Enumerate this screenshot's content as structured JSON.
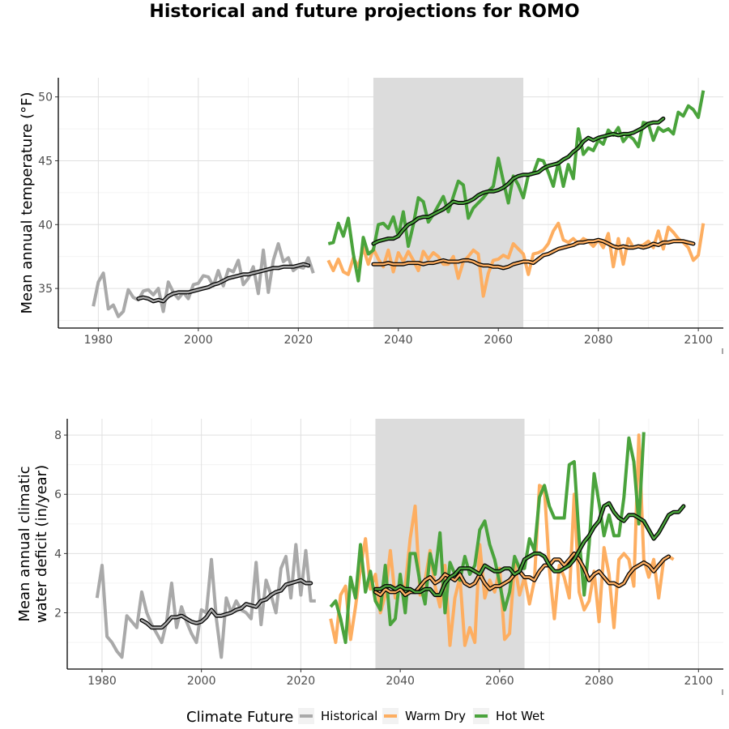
{
  "title": "Historical and future projections for ROMO",
  "colors": {
    "historical": "#a9a9a9",
    "warm_dry": "#fdae61",
    "hot_wet": "#4aa33c",
    "shade": "#dcdcdc"
  },
  "legend": {
    "title": "Climate Future",
    "items": [
      "Historical",
      "Warm Dry",
      "Hot Wet"
    ]
  },
  "chart_data": [
    {
      "type": "line",
      "ylabel": "Mean annual temperature (°F)",
      "xlim": [
        1972,
        2105
      ],
      "ylim": [
        31.9,
        51.5
      ],
      "xticks": [
        1980,
        2000,
        2020,
        2040,
        2060,
        2080,
        2100
      ],
      "yticks": [
        35,
        40,
        45,
        50
      ],
      "shaded_period": [
        2035,
        2065
      ],
      "series": [
        {
          "name": "Historical",
          "color_key": "historical",
          "smooth": false,
          "start": 1979,
          "values": [
            33.6,
            35.5,
            36.2,
            33.4,
            33.7,
            32.8,
            33.2,
            34.9,
            34.3,
            34.1,
            34.8,
            34.9,
            34.5,
            35.0,
            33.2,
            35.5,
            34.7,
            34.2,
            34.7,
            34.2,
            35.3,
            35.4,
            36.0,
            35.9,
            35.2,
            36.4,
            35.2,
            36.5,
            36.3,
            37.2,
            35.3,
            35.8,
            36.7,
            34.6,
            38.0,
            34.7,
            37.2,
            38.5,
            37.1,
            37.4,
            36.4,
            36.7,
            36.6,
            37.4,
            36.2
          ]
        },
        {
          "name": "Historical (moving average)",
          "color_key": "historical",
          "smooth": true,
          "start": 1988,
          "values": [
            34.2,
            34.3,
            34.2,
            34.0,
            34.1,
            34.0,
            34.4,
            34.6,
            34.7,
            34.7,
            34.7,
            34.8,
            34.9,
            35.0,
            35.1,
            35.3,
            35.4,
            35.6,
            35.8,
            35.9,
            36.0,
            36.1,
            36.1,
            36.2,
            36.3,
            36.4,
            36.5,
            36.6,
            36.6,
            36.7,
            36.7,
            36.7,
            36.8,
            36.9,
            36.8
          ]
        },
        {
          "name": "Warm Dry",
          "color_key": "warm_dry",
          "smooth": false,
          "start": 2026,
          "values": [
            37.2,
            36.4,
            37.3,
            36.3,
            36.1,
            37.4,
            36.7,
            38.2,
            36.9,
            38.1,
            37.3,
            36.7,
            38.0,
            36.3,
            37.8,
            37.1,
            37.9,
            37.2,
            36.4,
            37.9,
            37.3,
            37.8,
            37.5,
            36.9,
            36.9,
            37.5,
            35.8,
            37.1,
            37.5,
            38.0,
            37.7,
            34.4,
            36.2,
            37.2,
            37.3,
            37.6,
            37.4,
            38.5,
            38.1,
            37.7,
            36.1,
            37.7,
            37.8,
            38.0,
            38.5,
            39.5,
            40.1,
            38.8,
            38.6,
            38.9,
            38.5,
            38.9,
            38.7,
            38.3,
            38.8,
            38.2,
            39.3,
            36.7,
            38.9,
            36.9,
            38.9,
            38.2,
            38.3,
            38.4,
            38.7,
            38.2,
            39.5,
            38.1,
            39.8,
            39.4,
            38.9,
            38.6,
            38.2,
            37.2,
            37.6,
            40.1
          ]
        },
        {
          "name": "Hot Wet",
          "color_key": "hot_wet",
          "smooth": false,
          "start": 2026,
          "values": [
            38.5,
            38.6,
            40.1,
            39.1,
            40.5,
            37.7,
            35.6,
            39.0,
            37.7,
            38.0,
            40.0,
            40.1,
            39.7,
            40.6,
            39.1,
            41.0,
            38.3,
            40.0,
            42.1,
            41.8,
            40.2,
            40.8,
            41.5,
            42.2,
            41.0,
            42.2,
            43.4,
            43.1,
            40.5,
            41.3,
            41.7,
            42.1,
            42.6,
            43.0,
            45.2,
            43.4,
            41.7,
            43.8,
            43.1,
            42.1,
            43.9,
            44.0,
            45.1,
            45.0,
            44.1,
            43.0,
            44.9,
            43.0,
            44.7,
            43.6,
            47.5,
            45.5,
            46.0,
            45.8,
            46.6,
            46.3,
            47.4,
            47.0,
            47.6,
            46.5,
            47.0,
            46.7,
            46.1,
            48.0,
            47.9,
            46.6,
            47.6,
            47.3,
            47.5,
            47.1,
            48.8,
            48.5,
            49.3,
            49.0,
            48.4,
            50.5
          ]
        },
        {
          "name": "Warm Dry (moving average)",
          "color_key": "warm_dry",
          "smooth": true,
          "start": 2035,
          "values": [
            36.9,
            36.9,
            36.9,
            37.0,
            36.9,
            36.9,
            36.9,
            37.0,
            37.0,
            37.0,
            36.9,
            37.0,
            37.0,
            37.1,
            37.2,
            37.1,
            37.1,
            37.1,
            37.2,
            37.2,
            37.1,
            36.9,
            36.8,
            36.8,
            36.7,
            36.7,
            36.6,
            36.7,
            36.9,
            37.0,
            37.1,
            37.1,
            37.0,
            37.3,
            37.6,
            37.7,
            37.9,
            38.1,
            38.2,
            38.3,
            38.4,
            38.6,
            38.6,
            38.7,
            38.7,
            38.8,
            38.7,
            38.5,
            38.3,
            38.2,
            38.3,
            38.2,
            38.2,
            38.3,
            38.2,
            38.3,
            38.5,
            38.4,
            38.6,
            38.6,
            38.7,
            38.7,
            38.7,
            38.6,
            38.5
          ]
        },
        {
          "name": "Hot Wet (moving average)",
          "color_key": "hot_wet",
          "smooth": true,
          "start": 2035,
          "values": [
            38.5,
            38.7,
            38.8,
            38.9,
            38.9,
            39.1,
            39.6,
            40.0,
            40.2,
            40.5,
            40.6,
            40.6,
            40.8,
            41.0,
            41.2,
            41.5,
            41.8,
            41.7,
            41.7,
            41.8,
            42.0,
            42.3,
            42.5,
            42.6,
            42.6,
            42.7,
            42.9,
            43.2,
            43.6,
            43.8,
            43.9,
            43.9,
            44.0,
            44.1,
            44.4,
            44.6,
            44.7,
            44.8,
            45.1,
            45.3,
            45.7,
            46.0,
            46.5,
            46.8,
            46.6,
            46.8,
            46.9,
            47.0,
            47.1,
            47.0,
            47.1,
            47.1,
            47.2,
            47.4,
            47.6,
            47.9,
            48.0,
            48.0,
            48.3
          ]
        }
      ]
    },
    {
      "type": "line",
      "ylabel": "Mean annual climatic water deficit (in/year)",
      "xlim": [
        1973,
        2105
      ],
      "ylim": [
        0.1,
        8.55
      ],
      "xticks": [
        1980,
        2000,
        2020,
        2040,
        2060,
        2080,
        2100
      ],
      "yticks": [
        2,
        4,
        6,
        8
      ],
      "shaded_period": [
        2035,
        2065
      ],
      "series": [
        {
          "name": "Historical",
          "color_key": "historical",
          "smooth": false,
          "start": 1979,
          "values": [
            2.5,
            3.6,
            1.2,
            1.0,
            0.7,
            0.5,
            1.9,
            1.7,
            1.5,
            2.7,
            2.0,
            1.6,
            1.3,
            1.0,
            1.7,
            3.0,
            1.5,
            2.2,
            1.7,
            1.3,
            1.0,
            2.1,
            2.0,
            3.8,
            1.8,
            0.5,
            2.5,
            2.0,
            2.4,
            2.1,
            2.0,
            1.8,
            3.7,
            1.6,
            3.1,
            2.6,
            2.0,
            3.5,
            3.9,
            2.5,
            4.3,
            2.6,
            4.1,
            2.4,
            2.4
          ]
        },
        {
          "name": "Historical (moving average)",
          "color_key": "historical",
          "smooth": true,
          "start": 1988,
          "values": [
            1.75,
            1.65,
            1.5,
            1.5,
            1.5,
            1.65,
            1.85,
            1.85,
            1.9,
            1.8,
            1.7,
            1.65,
            1.7,
            1.85,
            2.1,
            1.9,
            1.9,
            1.95,
            2.0,
            2.1,
            2.15,
            2.3,
            2.25,
            2.2,
            2.4,
            2.45,
            2.6,
            2.7,
            2.75,
            2.95,
            3.0,
            3.05,
            3.1,
            3.0,
            3.0
          ]
        },
        {
          "name": "Warm Dry",
          "color_key": "warm_dry",
          "smooth": false,
          "start": 2026,
          "values": [
            1.8,
            1.0,
            2.6,
            2.9,
            1.1,
            2.2,
            3.5,
            4.5,
            2.8,
            3.3,
            2.0,
            2.6,
            4.1,
            2.5,
            2.9,
            2.9,
            4.5,
            5.6,
            2.6,
            3.1,
            4.1,
            2.9,
            2.2,
            3.6,
            0.9,
            2.5,
            3.2,
            0.9,
            1.5,
            1.0,
            4.3,
            2.5,
            3.1,
            2.7,
            3.5,
            1.1,
            1.3,
            3.7,
            2.6,
            3.2,
            2.3,
            3.1,
            6.3,
            6.2,
            3.5,
            1.8,
            3.6,
            3.2,
            2.5,
            6.0,
            2.7,
            2.1,
            2.4,
            3.4,
            1.7,
            4.2,
            3.3,
            1.5,
            3.8,
            4.0,
            3.8,
            2.9,
            8.0,
            3.8,
            3.2,
            3.8,
            2.5,
            3.8,
            3.9,
            3.8
          ]
        },
        {
          "name": "Hot Wet",
          "color_key": "hot_wet",
          "smooth": false,
          "start": 2026,
          "values": [
            2.2,
            2.4,
            1.8,
            1.0,
            3.2,
            2.5,
            4.3,
            2.7,
            3.4,
            2.4,
            2.1,
            3.6,
            1.6,
            1.8,
            3.3,
            2.0,
            4.0,
            4.0,
            3.0,
            2.3,
            4.0,
            3.3,
            4.7,
            2.0,
            3.7,
            3.3,
            3.1,
            3.9,
            3.3,
            3.6,
            4.8,
            5.1,
            4.3,
            3.8,
            3.0,
            2.1,
            2.7,
            3.9,
            3.5,
            3.5,
            4.5,
            4.1,
            5.9,
            6.3,
            5.6,
            5.2,
            5.2,
            5.2,
            7.0,
            7.1,
            4.5,
            2.6,
            4.3,
            6.7,
            5.7,
            4.6,
            5.3,
            4.6,
            4.6,
            5.9,
            7.9,
            7.1,
            5.0,
            8.1
          ]
        },
        {
          "name": "Warm Dry (moving average)",
          "color_key": "warm_dry",
          "smooth": true,
          "start": 2035,
          "values": [
            2.7,
            2.6,
            2.8,
            2.7,
            2.7,
            2.8,
            2.6,
            2.7,
            2.7,
            2.9,
            3.1,
            3.2,
            3.0,
            3.1,
            3.3,
            3.2,
            3.1,
            3.3,
            3.0,
            2.9,
            3.0,
            3.3,
            3.0,
            2.8,
            2.9,
            2.9,
            3.0,
            3.1,
            3.3,
            3.4,
            3.2,
            3.2,
            3.1,
            3.4,
            3.6,
            3.6,
            3.8,
            3.8,
            3.6,
            3.8,
            4.0,
            3.8,
            3.5,
            3.1,
            3.3,
            3.4,
            3.2,
            3.0,
            3.0,
            2.9,
            3.0,
            3.3,
            3.5,
            3.6,
            3.7,
            3.6,
            3.4,
            3.6,
            3.8,
            3.9
          ]
        },
        {
          "name": "Hot Wet (moving average)",
          "color_key": "hot_wet",
          "smooth": true,
          "start": 2035,
          "values": [
            2.8,
            2.8,
            2.9,
            2.9,
            2.8,
            2.9,
            2.8,
            2.8,
            2.7,
            2.7,
            2.8,
            2.8,
            2.6,
            2.6,
            3.0,
            3.2,
            3.3,
            3.5,
            3.5,
            3.5,
            3.4,
            3.3,
            3.6,
            3.5,
            3.4,
            3.4,
            3.5,
            3.5,
            3.3,
            3.4,
            3.8,
            3.9,
            4.0,
            4.0,
            3.9,
            3.6,
            3.4,
            3.4,
            3.5,
            3.6,
            3.8,
            4.1,
            4.4,
            4.6,
            4.9,
            5.1,
            5.6,
            5.7,
            5.4,
            5.2,
            5.1,
            5.3,
            5.3,
            5.2,
            5.1,
            4.8,
            4.5,
            4.7,
            5.0,
            5.3,
            5.4,
            5.4,
            5.6
          ]
        }
      ]
    }
  ]
}
